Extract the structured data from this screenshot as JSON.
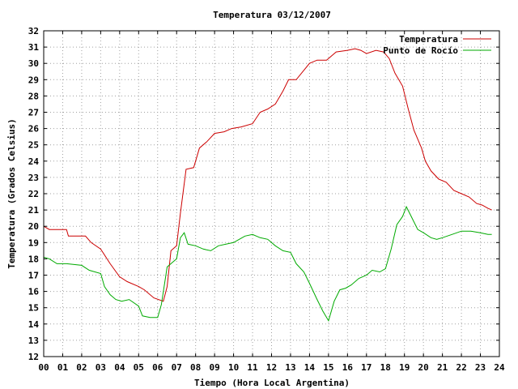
{
  "chart_data": {
    "type": "line",
    "title": "Temperatura 03/12/2007",
    "xlabel": "Tiempo (Hora Local Argentina)",
    "ylabel": "Temperatura (Grados Celsius)",
    "xlim": [
      0,
      24
    ],
    "ylim": [
      12,
      32
    ],
    "x_ticks": [
      "00",
      "01",
      "02",
      "03",
      "04",
      "05",
      "06",
      "07",
      "08",
      "09",
      "10",
      "11",
      "12",
      "13",
      "14",
      "15",
      "16",
      "17",
      "18",
      "19",
      "20",
      "21",
      "22",
      "23",
      "24"
    ],
    "y_ticks": [
      12,
      13,
      14,
      15,
      16,
      17,
      18,
      19,
      20,
      21,
      22,
      23,
      24,
      25,
      26,
      27,
      28,
      29,
      30,
      31,
      32
    ],
    "grid": true,
    "legend_position": "top-right",
    "series": [
      {
        "name": "Temperatura",
        "color": "#cc0000",
        "x": [
          0,
          0.3,
          1.2,
          1.3,
          2.2,
          2.5,
          3.0,
          3.5,
          4.0,
          4.4,
          5.0,
          5.3,
          5.8,
          6.3,
          6.5,
          6.7,
          7.0,
          7.2,
          7.5,
          7.9,
          8.2,
          8.6,
          9.0,
          9.5,
          9.9,
          10.4,
          11.0,
          11.4,
          11.8,
          12.2,
          12.6,
          12.9,
          13.3,
          14.0,
          14.4,
          14.9,
          15.4,
          16.0,
          16.4,
          16.7,
          17.0,
          17.5,
          17.9,
          18.2,
          18.5,
          18.9,
          19.2,
          19.5,
          19.9,
          20.1,
          20.4,
          20.8,
          21.2,
          21.6,
          22.0,
          22.4,
          22.8,
          23.1,
          23.4,
          23.6
        ],
        "y": [
          20.0,
          19.8,
          19.8,
          19.4,
          19.4,
          19.0,
          18.6,
          17.7,
          16.9,
          16.6,
          16.3,
          16.1,
          15.6,
          15.4,
          16.3,
          18.5,
          18.8,
          20.8,
          23.5,
          23.6,
          24.8,
          25.2,
          25.7,
          25.8,
          26.0,
          26.1,
          26.3,
          27.0,
          27.2,
          27.5,
          28.3,
          29.0,
          29.0,
          30.0,
          30.2,
          30.2,
          30.7,
          30.8,
          30.9,
          30.8,
          30.6,
          30.8,
          30.7,
          30.3,
          29.4,
          28.6,
          27.2,
          25.9,
          24.8,
          24.0,
          23.4,
          22.9,
          22.7,
          22.2,
          22.0,
          21.8,
          21.4,
          21.3,
          21.1,
          21.0
        ]
      },
      {
        "name": "Punto de Rocío",
        "color": "#00aa00",
        "x": [
          0,
          0.3,
          0.7,
          1.2,
          2.0,
          2.4,
          3.0,
          3.2,
          3.5,
          3.8,
          4.1,
          4.5,
          5.0,
          5.2,
          5.6,
          6.0,
          6.2,
          6.5,
          6.8,
          7.0,
          7.2,
          7.4,
          7.6,
          8.0,
          8.4,
          8.8,
          9.2,
          9.6,
          10.0,
          10.3,
          10.6,
          11.0,
          11.4,
          11.8,
          12.2,
          12.6,
          13.0,
          13.3,
          13.7,
          14.0,
          14.4,
          14.7,
          15.0,
          15.3,
          15.6,
          15.9,
          16.2,
          16.6,
          17.0,
          17.3,
          17.7,
          18.0,
          18.3,
          18.6,
          18.9,
          19.1,
          19.4,
          19.7,
          20.0,
          20.4,
          20.7,
          21.0,
          21.5,
          22.0,
          22.5,
          23.0,
          23.4,
          23.6
        ],
        "y": [
          18.1,
          18.0,
          17.7,
          17.7,
          17.6,
          17.3,
          17.1,
          16.3,
          15.8,
          15.5,
          15.4,
          15.5,
          15.1,
          14.5,
          14.4,
          14.4,
          15.2,
          17.5,
          17.8,
          18.0,
          19.3,
          19.6,
          18.9,
          18.8,
          18.6,
          18.5,
          18.8,
          18.9,
          19.0,
          19.2,
          19.4,
          19.5,
          19.3,
          19.2,
          18.8,
          18.5,
          18.4,
          17.7,
          17.2,
          16.5,
          15.5,
          14.8,
          14.2,
          15.4,
          16.1,
          16.2,
          16.4,
          16.8,
          17.0,
          17.3,
          17.2,
          17.4,
          18.6,
          20.1,
          20.6,
          21.2,
          20.5,
          19.8,
          19.6,
          19.3,
          19.2,
          19.3,
          19.5,
          19.7,
          19.7,
          19.6,
          19.5,
          19.5
        ]
      }
    ]
  }
}
